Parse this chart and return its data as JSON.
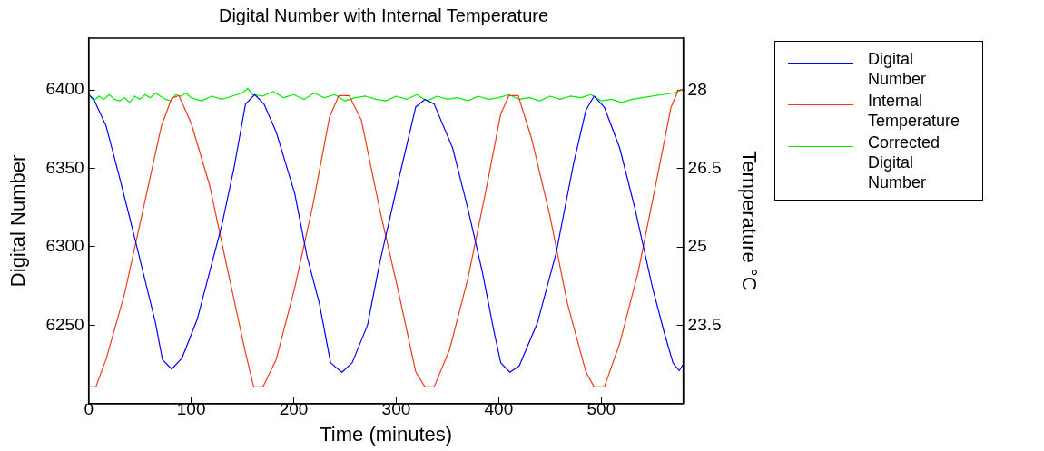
{
  "chart_data": {
    "type": "line",
    "title": "Digital Number with Internal Temperature",
    "xlabel": "Time (minutes)",
    "ylabel": "Digital Number",
    "y2label": "Temperature °C",
    "xlim": [
      0,
      580
    ],
    "xticks": [
      0,
      100,
      200,
      300,
      400,
      500
    ],
    "ylim": [
      6200,
      6433
    ],
    "yticks": [
      6250,
      6300,
      6350,
      6400
    ],
    "y2lim": [
      22,
      29
    ],
    "y2ticks": [
      23.5,
      25,
      26.5,
      28
    ],
    "grid": false,
    "legend": "right",
    "marker": "none",
    "line_style": "solid",
    "series": [
      {
        "name": "Digital Number",
        "color": "#0000ff",
        "x": [
          0,
          5,
          17,
          29,
          41,
          53,
          65,
          72,
          81,
          91,
          106,
          118,
          130,
          142,
          153,
          162,
          171,
          183,
          201,
          213,
          225,
          236,
          247,
          257,
          272,
          284,
          301,
          319,
          328,
          337,
          355,
          370,
          384,
          396,
          402,
          411,
          420,
          438,
          456,
          473,
          485,
          493,
          503,
          518,
          533,
          550,
          562,
          570,
          576,
          580
        ],
        "values": [
          6397,
          6394,
          6377,
          6347,
          6316,
          6284,
          6252,
          6228,
          6222,
          6229,
          6254,
          6284,
          6314,
          6351,
          6391,
          6397,
          6391,
          6373,
          6334,
          6294,
          6264,
          6226,
          6220,
          6226,
          6250,
          6290,
          6339,
          6389,
          6394,
          6391,
          6363,
          6324,
          6284,
          6244,
          6226,
          6220,
          6224,
          6252,
          6296,
          6353,
          6387,
          6396,
          6389,
          6363,
          6324,
          6274,
          6244,
          6226,
          6221,
          6225
        ]
      },
      {
        "name": "Internal Temperature",
        "color": "#ee3a1a",
        "axis": "y2",
        "x": [
          0,
          7,
          17,
          35,
          53,
          71,
          81,
          88,
          100,
          118,
          136,
          153,
          161,
          170,
          183,
          201,
          219,
          235,
          244,
          254,
          266,
          284,
          302,
          319,
          328,
          337,
          352,
          370,
          388,
          402,
          410,
          419,
          432,
          450,
          467,
          485,
          493,
          503,
          518,
          536,
          553,
          568,
          575,
          580
        ],
        "values": [
          22.32,
          22.32,
          22.85,
          24.1,
          25.71,
          27.32,
          27.85,
          27.9,
          27.37,
          26.18,
          24.52,
          22.97,
          22.32,
          22.32,
          22.85,
          24.22,
          25.83,
          27.49,
          27.9,
          27.9,
          27.43,
          25.71,
          24.16,
          22.61,
          22.32,
          22.32,
          23.03,
          24.4,
          26.13,
          27.55,
          27.9,
          27.9,
          27.08,
          25.59,
          23.92,
          22.61,
          22.32,
          22.32,
          23.15,
          24.52,
          26.18,
          27.67,
          28,
          28.02
        ]
      },
      {
        "name": "Corrected Digital Number",
        "color": "#00ee00",
        "x": [
          0,
          5,
          10,
          15,
          20,
          25,
          30,
          35,
          40,
          45,
          50,
          55,
          60,
          65,
          70,
          75,
          80,
          85,
          90,
          95,
          100,
          110,
          120,
          130,
          140,
          150,
          155,
          160,
          170,
          180,
          190,
          200,
          210,
          220,
          230,
          240,
          250,
          260,
          270,
          280,
          290,
          300,
          310,
          320,
          330,
          340,
          350,
          360,
          370,
          380,
          390,
          400,
          410,
          420,
          430,
          440,
          450,
          460,
          470,
          480,
          490,
          500,
          510,
          520,
          530,
          540,
          550,
          560,
          570,
          575,
          580
        ],
        "values": [
          6397,
          6393,
          6396,
          6394,
          6397,
          6394,
          6393,
          6395,
          6392,
          6396,
          6394,
          6397,
          6395,
          6398,
          6396,
          6394,
          6393,
          6397,
          6396,
          6398,
          6395,
          6393,
          6396,
          6394,
          6396,
          6398,
          6401,
          6397,
          6396,
          6399,
          6395,
          6397,
          6394,
          6398,
          6395,
          6397,
          6393,
          6395,
          6396,
          6394,
          6393,
          6396,
          6394,
          6397,
          6393,
          6396,
          6394,
          6395,
          6393,
          6396,
          6394,
          6395,
          6397,
          6394,
          6395,
          6393,
          6396,
          6394,
          6396,
          6395,
          6397,
          6393,
          6394,
          6392,
          6394,
          6395,
          6396,
          6397,
          6398,
          6399,
          6400
        ]
      }
    ]
  }
}
